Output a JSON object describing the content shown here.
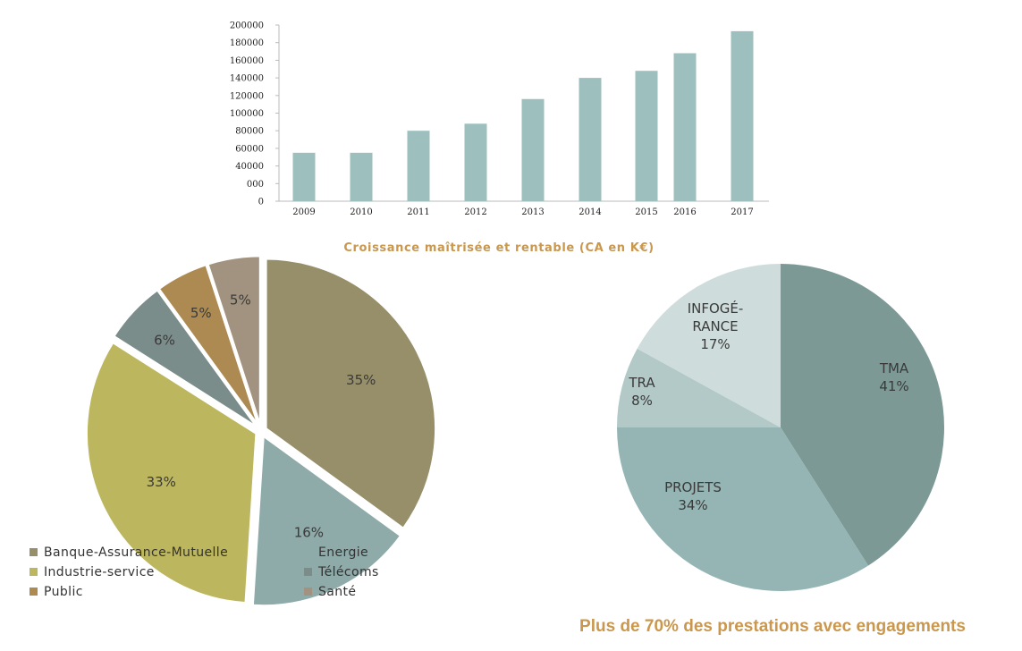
{
  "chart_data": [
    {
      "type": "bar",
      "categories": [
        "2009",
        "2010",
        "2011",
        "2012",
        "2013",
        "2014",
        "2015",
        "2016",
        "2017"
      ],
      "values": [
        55000,
        55000,
        80000,
        88000,
        116000,
        140000,
        148000,
        168000,
        193000
      ],
      "yticks": [
        "0",
        "000",
        "40000",
        "60000",
        "80000",
        "100000",
        "120000",
        "140000",
        "160000",
        "180000",
        "200000"
      ],
      "ylim": [
        0,
        200000
      ],
      "title": "Croissance maîtrisée et rentable (CA en K€)",
      "xlabel": "",
      "ylabel": "",
      "grid": false,
      "bar_color": "#9dbfbe"
    },
    {
      "type": "pie",
      "labels": [
        "Banque-Assurance-Mutuelle",
        "Energie",
        "Industrie-service",
        "Télécoms",
        "Public",
        "Santé"
      ],
      "values": [
        35,
        16,
        33,
        6,
        5,
        5
      ],
      "value_labels": [
        "35%",
        "16%",
        "33%",
        "6%",
        "5%",
        "5%"
      ],
      "colors": [
        "#978f6a",
        "#8eaaa9",
        "#bcb65f",
        "#7b8d8a",
        "#ac8a52",
        "#a1937f"
      ],
      "legend": "bottom"
    },
    {
      "type": "pie",
      "labels": [
        "TMA",
        "PROJETS",
        "TRA",
        "INFOGÉRANCE"
      ],
      "label_lines": [
        [
          "TMA",
          "41%"
        ],
        [
          "PROJETS",
          "34%"
        ],
        [
          "TRA",
          "8%"
        ],
        [
          "INFOGÉ-",
          "RANCE",
          "17%"
        ]
      ],
      "values": [
        41,
        34,
        8,
        17
      ],
      "value_labels": [
        "41%",
        "34%",
        "8%",
        "17%"
      ],
      "colors": [
        "#7c9996",
        "#94b5b4",
        "#b2c9c8",
        "#cedcdc"
      ],
      "title": "Plus de 70% des prestations avec engagements"
    }
  ]
}
